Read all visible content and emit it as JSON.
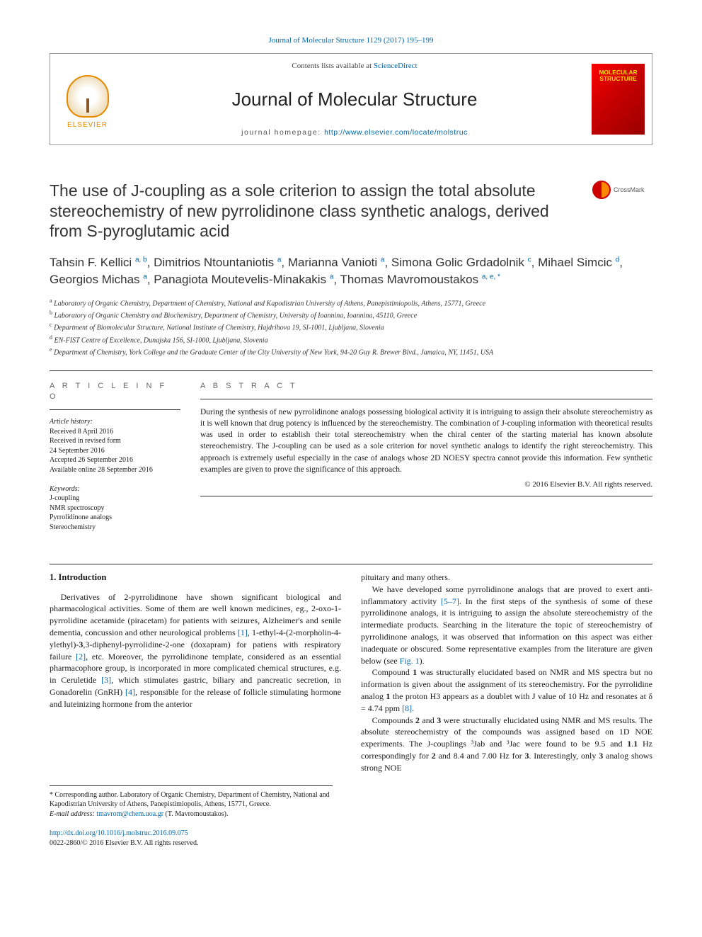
{
  "colors": {
    "link": "#0066aa",
    "text": "#1a1a1a",
    "elsevier_orange": "#e68a00",
    "cover_gradient": [
      "#ff0000",
      "#cc0000",
      "#990000"
    ],
    "cover_text": "#ffdd00",
    "crossmark_red": "#c00",
    "crossmark_orange": "#ff8800",
    "rule": "#333333"
  },
  "citation": "Journal of Molecular Structure 1129 (2017) 195–199",
  "banner": {
    "contents_prefix": "Contents lists available at ",
    "contents_link": "ScienceDirect",
    "journal": "Journal of Molecular Structure",
    "homepage_prefix": "journal homepage: ",
    "homepage_url": "http://www.elsevier.com/locate/molstruc",
    "publisher": "ELSEVIER",
    "cover_text": "MOLECULAR STRUCTURE"
  },
  "crossmark_label": "CrossMark",
  "title": "The use of J-coupling as a sole criterion to assign the total absolute stereochemistry of new pyrrolidinone class synthetic analogs, derived from S-pyroglutamic acid",
  "authors_html": "Tahsin F. Kellici <sup>a, b</sup>, Dimitrios Ntountaniotis <sup>a</sup>, Marianna Vanioti <sup>a</sup>, Simona Golic Grdadolnik <sup>c</sup>, Mihael Simcic <sup>d</sup>, Georgios Michas <sup>a</sup>, Panagiota Moutevelis-Minakakis <sup>a</sup>, Thomas Mavromoustakos <sup>a, e, *</sup>",
  "affiliations": [
    {
      "sup": "a",
      "text": "Laboratory of Organic Chemistry, Department of Chemistry, National and Kapodistrian University of Athens, Panepistimiopolis, Athens, 15771, Greece"
    },
    {
      "sup": "b",
      "text": "Laboratory of Organic Chemistry and Biochemistry, Department of Chemistry, University of Ioannina, Ioannina, 45110, Greece"
    },
    {
      "sup": "c",
      "text": "Department of Biomolecular Structure, National Institute of Chemistry, Hajdrihova 19, SI-1001, Ljubljana, Slovenia"
    },
    {
      "sup": "d",
      "text": "EN-FIST Centre of Excellence, Dunajska 156, SI-1000, Ljubljana, Slovenia"
    },
    {
      "sup": "e",
      "text": "Department of Chemistry, York College and the Graduate Center of the City University of New York, 94-20 Guy R. Brewer Blvd., Jamaica, NY, 11451, USA"
    }
  ],
  "article_info": {
    "heading": "A R T I C L E  I N F O",
    "history_label": "Article history:",
    "history": [
      "Received 8 April 2016",
      "Received in revised form",
      "24 September 2016",
      "Accepted 26 September 2016",
      "Available online 28 September 2016"
    ],
    "keywords_label": "Keywords:",
    "keywords": [
      "J-coupling",
      "NMR spectroscopy",
      "Pyrrolidinone analogs",
      "Stereochemistry"
    ]
  },
  "abstract": {
    "heading": "A B S T R A C T",
    "text": "During the synthesis of new pyrrolidinone analogs possessing biological activity it is intriguing to assign their absolute stereochemistry as it is well known that drug potency is influenced by the stereochemistry. The combination of J-coupling information with theoretical results was used in order to establish their total stereochemistry when the chiral center of the starting material has known absolute stereochemistry. The J-coupling can be used as a sole criterion for novel synthetic analogs to identify the right stereochemistry. This approach is extremely useful especially in the case of analogs whose 2D NOESY spectra cannot provide this information. Few synthetic examples are given to prove the significance of this approach.",
    "copyright": "© 2016 Elsevier B.V. All rights reserved."
  },
  "body": {
    "section1_heading": "1. Introduction",
    "left_paras": [
      "Derivatives of 2-pyrrolidinone have shown significant biological and pharmacological activities. Some of them are well known medicines, eg., 2-oxo-1-pyrrolidine acetamide (piracetam) for patients with seizures, Alzheimer's and senile dementia, concussion and other neurological problems [1], 1-ethyl-4-(2-morpholin-4-ylethyl)-3,3-diphenyl-pyrrolidine-2-one (doxapram) for patiens with respiratory failure [2], etc. Moreover, the pyrrolidinone template, considered as an essential pharmacophore group, is incorporated in more complicated chemical structures, e.g. in Ceruletide [3], which stimulates gastric, biliary and pancreatic secretion, in Gonadorelin (GnRH) [4], responsible for the release of follicle stimulating hormone and luteinizing hormone from the anterior"
    ],
    "right_paras": [
      "pituitary and many others.",
      "We have developed some pyrrolidinone analogs that are proved to exert anti-inflammatory activity [5–7]. In the first steps of the synthesis of some of these pyrrolidinone analogs, it is intriguing to assign the absolute stereochemistry of the intermediate products. Searching in the literature the topic of stereochemistry of pyrrolidinone analogs, it was observed that information on this aspect was either inadequate or obscured. Some representative examples from the literature are given below (see Fig. 1).",
      "Compound 1 was structurally elucidated based on NMR and MS spectra but no information is given about the assignment of its stereochemistry. For the pyrrolidine analog 1 the proton H3 appears as a doublet with J value of 10 Hz and resonates at δ = 4.74 ppm [8].",
      "Compounds 2 and 3 were structurally elucidated using NMR and MS results. The absolute stereochemistry of the compounds was assigned based on 1D NOE experiments. The J-couplings ³Jab and ³Jac were found to be 9.5 and 1.1 Hz correspondingly for 2 and 8.4 and 7.00 Hz for 3. Interestingly, only 3 analog shows strong NOE"
    ],
    "refs_in_text": {
      "[1]": "[1]",
      "[2]": "[2]",
      "[3]": "[3]",
      "[4]": "[4]",
      "[5–7]": "[5–7]",
      "[8]": "[8]",
      "Fig. 1": "Fig. 1"
    }
  },
  "footnotes": {
    "corresponding": "* Corresponding author. Laboratory of Organic Chemistry, Department of Chemistry, National and Kapodistrian University of Athens, Panepistimiopolis, Athens, 15771, Greece.",
    "email_label": "E-mail address: ",
    "email": "tmavrom@chem.uoa.gr",
    "email_suffix": " (T. Mavromoustakos)."
  },
  "bottom": {
    "doi": "http://dx.doi.org/10.1016/j.molstruc.2016.09.075",
    "issn_line": "0022-2860/© 2016 Elsevier B.V. All rights reserved."
  }
}
